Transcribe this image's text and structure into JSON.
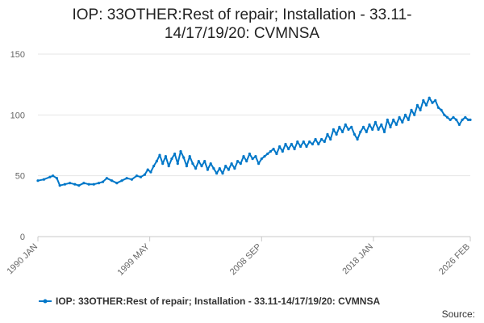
{
  "chart_data": {
    "type": "line",
    "title_lines": [
      "IOP: 33OTHER:Rest of repair; Installation - 33.11-",
      "14/17/19/20: CVMNSA"
    ],
    "xlabel": "",
    "ylabel": "",
    "ylim": [
      0,
      150
    ],
    "yticks": [
      0,
      50,
      100,
      150
    ],
    "xlim": [
      "1990-01",
      "2026-02"
    ],
    "xticks": [
      {
        "label": "1990 JAN",
        "date": "1990-01"
      },
      {
        "label": "1999 MAY",
        "date": "1999-05"
      },
      {
        "label": "2008 SEP",
        "date": "2008-09"
      },
      {
        "label": "2018 JAN",
        "date": "2018-01"
      },
      {
        "label": "2026 FEB",
        "date": "2026-02"
      }
    ],
    "grid": true,
    "legend_position": "bottom",
    "color": "#0077c8",
    "series": [
      {
        "name": "IOP: 33OTHER:Rest of repair; Installation - 33.11-14/17/19/20: CVMNSA",
        "points": [
          [
            "1990-01",
            46
          ],
          [
            "1990-07",
            47
          ],
          [
            "1991-01",
            49
          ],
          [
            "1991-04",
            50
          ],
          [
            "1991-08",
            48
          ],
          [
            "1991-11",
            42
          ],
          [
            "1992-04",
            43
          ],
          [
            "1992-09",
            44
          ],
          [
            "1993-02",
            43
          ],
          [
            "1993-06",
            42
          ],
          [
            "1993-11",
            44
          ],
          [
            "1994-04",
            43
          ],
          [
            "1994-09",
            43
          ],
          [
            "1995-02",
            44
          ],
          [
            "1995-06",
            45
          ],
          [
            "1995-10",
            48
          ],
          [
            "1996-03",
            46
          ],
          [
            "1996-08",
            44
          ],
          [
            "1997-01",
            46
          ],
          [
            "1997-06",
            48
          ],
          [
            "1997-11",
            47
          ],
          [
            "1998-04",
            50
          ],
          [
            "1998-08",
            49
          ],
          [
            "1998-12",
            51
          ],
          [
            "1999-03",
            55
          ],
          [
            "1999-06",
            53
          ],
          [
            "1999-09",
            58
          ],
          [
            "1999-12",
            62
          ],
          [
            "2000-03",
            67
          ],
          [
            "2000-06",
            60
          ],
          [
            "2000-09",
            66
          ],
          [
            "2000-12",
            58
          ],
          [
            "2001-03",
            64
          ],
          [
            "2001-06",
            68
          ],
          [
            "2001-09",
            60
          ],
          [
            "2001-12",
            70
          ],
          [
            "2002-03",
            65
          ],
          [
            "2002-06",
            58
          ],
          [
            "2002-09",
            66
          ],
          [
            "2002-12",
            60
          ],
          [
            "2003-03",
            56
          ],
          [
            "2003-06",
            62
          ],
          [
            "2003-09",
            58
          ],
          [
            "2003-12",
            62
          ],
          [
            "2004-03",
            55
          ],
          [
            "2004-06",
            60
          ],
          [
            "2004-09",
            56
          ],
          [
            "2004-12",
            52
          ],
          [
            "2005-03",
            56
          ],
          [
            "2005-06",
            52
          ],
          [
            "2005-09",
            58
          ],
          [
            "2005-12",
            55
          ],
          [
            "2006-03",
            60
          ],
          [
            "2006-06",
            56
          ],
          [
            "2006-09",
            62
          ],
          [
            "2006-12",
            60
          ],
          [
            "2007-03",
            66
          ],
          [
            "2007-06",
            62
          ],
          [
            "2007-09",
            68
          ],
          [
            "2007-12",
            64
          ],
          [
            "2008-03",
            66
          ],
          [
            "2008-06",
            60
          ],
          [
            "2008-09",
            64
          ],
          [
            "2008-12",
            66
          ],
          [
            "2009-03",
            68
          ],
          [
            "2009-06",
            70
          ],
          [
            "2009-09",
            72
          ],
          [
            "2009-12",
            68
          ],
          [
            "2010-03",
            74
          ],
          [
            "2010-06",
            70
          ],
          [
            "2010-09",
            76
          ],
          [
            "2010-12",
            72
          ],
          [
            "2011-03",
            76
          ],
          [
            "2011-06",
            72
          ],
          [
            "2011-09",
            78
          ],
          [
            "2011-12",
            74
          ],
          [
            "2012-03",
            78
          ],
          [
            "2012-06",
            74
          ],
          [
            "2012-09",
            78
          ],
          [
            "2012-12",
            76
          ],
          [
            "2013-03",
            80
          ],
          [
            "2013-06",
            76
          ],
          [
            "2013-09",
            80
          ],
          [
            "2013-12",
            78
          ],
          [
            "2014-03",
            84
          ],
          [
            "2014-06",
            80
          ],
          [
            "2014-09",
            88
          ],
          [
            "2014-12",
            84
          ],
          [
            "2015-03",
            90
          ],
          [
            "2015-06",
            86
          ],
          [
            "2015-09",
            92
          ],
          [
            "2015-12",
            88
          ],
          [
            "2016-03",
            90
          ],
          [
            "2016-06",
            84
          ],
          [
            "2016-09",
            80
          ],
          [
            "2016-12",
            86
          ],
          [
            "2017-03",
            90
          ],
          [
            "2017-06",
            86
          ],
          [
            "2017-09",
            92
          ],
          [
            "2017-12",
            88
          ],
          [
            "2018-03",
            94
          ],
          [
            "2018-06",
            88
          ],
          [
            "2018-09",
            92
          ],
          [
            "2018-12",
            86
          ],
          [
            "2019-03",
            96
          ],
          [
            "2019-06",
            90
          ],
          [
            "2019-09",
            96
          ],
          [
            "2019-12",
            92
          ],
          [
            "2020-03",
            98
          ],
          [
            "2020-06",
            94
          ],
          [
            "2020-09",
            100
          ],
          [
            "2020-12",
            96
          ],
          [
            "2021-03",
            104
          ],
          [
            "2021-06",
            100
          ],
          [
            "2021-09",
            108
          ],
          [
            "2021-12",
            104
          ],
          [
            "2022-03",
            112
          ],
          [
            "2022-06",
            108
          ],
          [
            "2022-09",
            114
          ],
          [
            "2022-12",
            110
          ],
          [
            "2023-03",
            112
          ],
          [
            "2023-06",
            106
          ],
          [
            "2023-09",
            104
          ],
          [
            "2023-12",
            100
          ],
          [
            "2024-03",
            98
          ],
          [
            "2024-06",
            96
          ],
          [
            "2024-09",
            98
          ],
          [
            "2024-12",
            96
          ],
          [
            "2025-03",
            92
          ],
          [
            "2025-06",
            96
          ],
          [
            "2025-09",
            98
          ],
          [
            "2025-12",
            96
          ],
          [
            "2026-02",
            96
          ]
        ]
      }
    ],
    "source_label": "Source:"
  }
}
